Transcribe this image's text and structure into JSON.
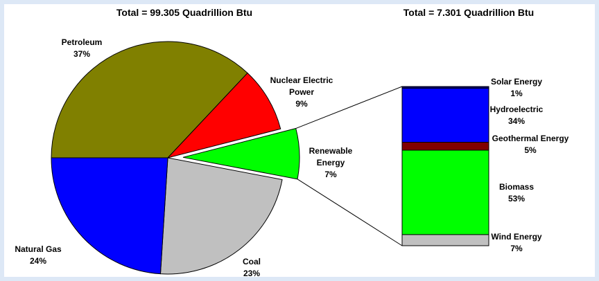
{
  "chart_data": [
    {
      "type": "pie",
      "title": "Total = 99.305 Quadrillion Btu",
      "categories": [
        "Petroleum",
        "Nuclear Electric Power",
        "Renewable Energy",
        "Coal",
        "Natural Gas"
      ],
      "values": [
        37,
        9,
        7,
        23,
        24
      ],
      "value_labels": [
        "37%",
        "9%",
        "7%",
        "23%",
        "24%"
      ],
      "colors": [
        "#808000",
        "#ff0000",
        "#00ff00",
        "#c0c0c0",
        "#0000ff"
      ],
      "exploded": "Renewable Energy"
    },
    {
      "type": "bar",
      "stacked": true,
      "title": "Total = 7.301 Quadrillion Btu",
      "series": [
        {
          "name": "Wind Energy",
          "color": "#c0c0c0",
          "values": [
            7
          ],
          "value_labels": [
            "7%"
          ]
        },
        {
          "name": "Biomass",
          "color": "#00ff00",
          "values": [
            53
          ],
          "value_labels": [
            "53%"
          ]
        },
        {
          "name": "Geothermal Energy",
          "color": "#800000",
          "values": [
            5
          ],
          "value_labels": [
            "5%"
          ]
        },
        {
          "name": "Hydroelectric",
          "color": "#0000ff",
          "values": [
            34
          ],
          "value_labels": [
            "34%"
          ]
        },
        {
          "name": "Solar Energy",
          "color": "#000080",
          "values": [
            1
          ],
          "value_labels": [
            "1%"
          ]
        }
      ]
    }
  ]
}
